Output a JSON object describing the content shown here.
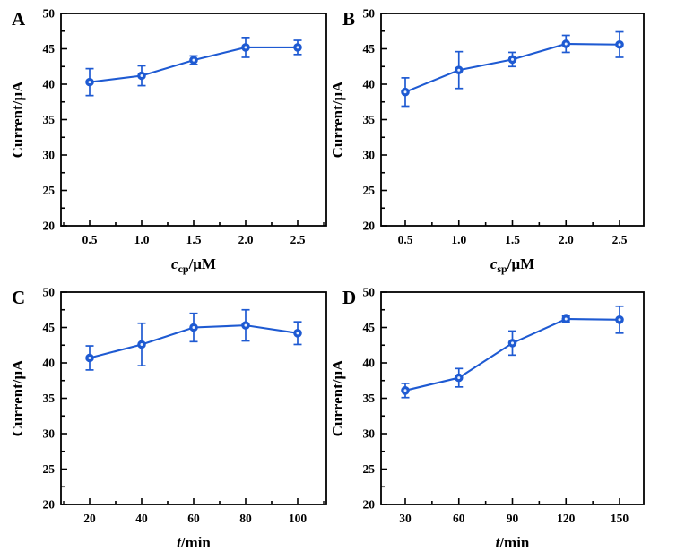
{
  "figure": {
    "background": "#ffffff",
    "description": "Four-panel optimization line charts with error bars"
  },
  "colors": {
    "accent": "#1e5ad2",
    "axis": "#000000",
    "marker_center": "#e9f1ff"
  },
  "chart_data": [
    {
      "type": "line",
      "panel": "A",
      "x": [
        0.5,
        1.0,
        1.5,
        2.0,
        2.5
      ],
      "x_tick_labels": [
        "0.5",
        "1.0",
        "1.5",
        "2.0",
        "2.5"
      ],
      "values": [
        40.3,
        41.2,
        43.4,
        45.2,
        45.2
      ],
      "errors": [
        1.9,
        1.4,
        0.6,
        1.4,
        1.0
      ],
      "xlabel": {
        "italic": "c",
        "sub": "cp",
        "rest": "/μM"
      },
      "ylabel": "Current/μA",
      "ylim": [
        20,
        50
      ],
      "yticks": [
        "20",
        "25",
        "30",
        "35",
        "40",
        "45",
        "50"
      ],
      "ytick_step": 5,
      "y_minor_step": 2.5,
      "grid": false,
      "legend": "none",
      "marker": "circle",
      "error_bars": true
    },
    {
      "type": "line",
      "panel": "B",
      "x": [
        0.5,
        1.0,
        1.5,
        2.0,
        2.5
      ],
      "x_tick_labels": [
        "0.5",
        "1.0",
        "1.5",
        "2.0",
        "2.5"
      ],
      "values": [
        38.9,
        42.0,
        43.5,
        45.7,
        45.6
      ],
      "errors": [
        2.0,
        2.6,
        1.0,
        1.2,
        1.8
      ],
      "xlabel": {
        "italic": "c",
        "sub": "sp",
        "rest": "/μM"
      },
      "ylabel": "Current/μA",
      "ylim": [
        20,
        50
      ],
      "yticks": [
        "20",
        "25",
        "30",
        "35",
        "40",
        "45",
        "50"
      ],
      "ytick_step": 5,
      "y_minor_step": 2.5,
      "grid": false,
      "legend": "none",
      "marker": "circle",
      "error_bars": true
    },
    {
      "type": "line",
      "panel": "C",
      "x": [
        20,
        40,
        60,
        80,
        100
      ],
      "x_tick_labels": [
        "20",
        "40",
        "60",
        "80",
        "100"
      ],
      "values": [
        40.7,
        42.6,
        45.0,
        45.3,
        44.2
      ],
      "errors": [
        1.7,
        3.0,
        2.0,
        2.2,
        1.6
      ],
      "xlabel": {
        "italic": "t",
        "sub": "",
        "rest": "/min"
      },
      "ylabel": "Current/μA",
      "ylim": [
        20,
        50
      ],
      "yticks": [
        "20",
        "25",
        "30",
        "35",
        "40",
        "45",
        "50"
      ],
      "ytick_step": 5,
      "y_minor_step": 2.5,
      "grid": false,
      "legend": "none",
      "marker": "circle",
      "error_bars": true
    },
    {
      "type": "line",
      "panel": "D",
      "x": [
        30,
        60,
        90,
        120,
        150
      ],
      "x_tick_labels": [
        "30",
        "60",
        "90",
        "120",
        "150"
      ],
      "values": [
        36.1,
        37.9,
        42.8,
        46.2,
        46.1
      ],
      "errors": [
        1.0,
        1.3,
        1.7,
        0.4,
        1.9
      ],
      "xlabel": {
        "italic": "t",
        "sub": "",
        "rest": "/min"
      },
      "ylabel": "Current/μA",
      "ylim": [
        20,
        50
      ],
      "yticks": [
        "20",
        "25",
        "30",
        "35",
        "40",
        "45",
        "50"
      ],
      "ytick_step": 5,
      "y_minor_step": 2.5,
      "grid": false,
      "legend": "none",
      "marker": "circle",
      "error_bars": true
    }
  ]
}
